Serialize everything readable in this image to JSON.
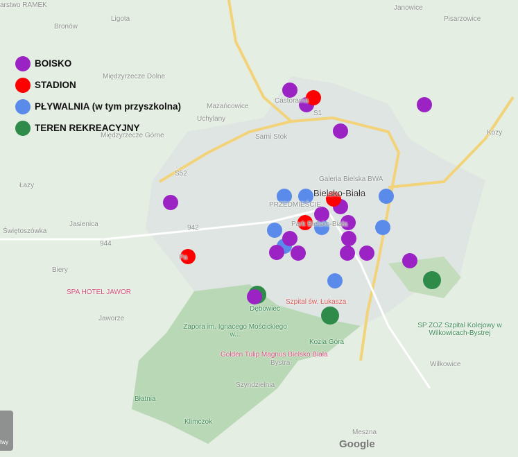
{
  "legend": [
    {
      "label": "BOISKO",
      "color": "#9b23c4"
    },
    {
      "label": "STADION",
      "color": "#ff0000"
    },
    {
      "label": "PŁYWALNIA (w tym przyszkolna)",
      "color": "#5b8bea"
    },
    {
      "label": "TEREN REKREACYJNY",
      "color": "#2e8b4a"
    }
  ],
  "map_labels": {
    "ramek": "arstwo\nRAMEK",
    "bronow": "Bronów",
    "ligota": "Ligota",
    "janowice": "Janowice",
    "pisarzowice": "Pisarzowice",
    "mdolne": "Międzyrzecze Dolne",
    "mgorne": "Międzyrzecze Górne",
    "mazancowice": "Mazańcowice",
    "uchylany": "Uchylany",
    "castorama": "Castorama",
    "sarni": "Sarni Stok",
    "galeria": "Galeria Bielska BWA",
    "city": "Bielsko-Biała",
    "przedmiescie": "PRZEDMIEŚCIE",
    "park": "Park Bielsko-Biała",
    "lazy": "Łazy",
    "jasienica": "Jasienica",
    "swietoszowka": "Świętoszówka",
    "biery": "Biery",
    "jawor": "SPA HOTEL JAWOR",
    "jaworze": "Jaworze",
    "debowiec": "Dębowiec",
    "zapora": "Zapora im. Ignacego Mościckiego w...",
    "szpital": "Szpital św. Łukasza",
    "spzoz": "SP ZOZ Szpital Kolejowy w Wilkowicach-Bystrej",
    "kozia": "Kozia Góra",
    "golden": "Golden Tulip Magnus Bielsko Biała",
    "bystra": "Bystra",
    "szyndzielnia": "Szyndzielnia",
    "blatnia": "Błatnia",
    "klimczok": "Klimczok",
    "wilkowice": "Wilkowice",
    "meszna": "Meszna",
    "kozy": "Kozy",
    "pa": "Pa",
    "google": "Google",
    "twy": "twy",
    "s1": "S1",
    "s52": "S52",
    "r942": "942",
    "r944": "944"
  }
}
